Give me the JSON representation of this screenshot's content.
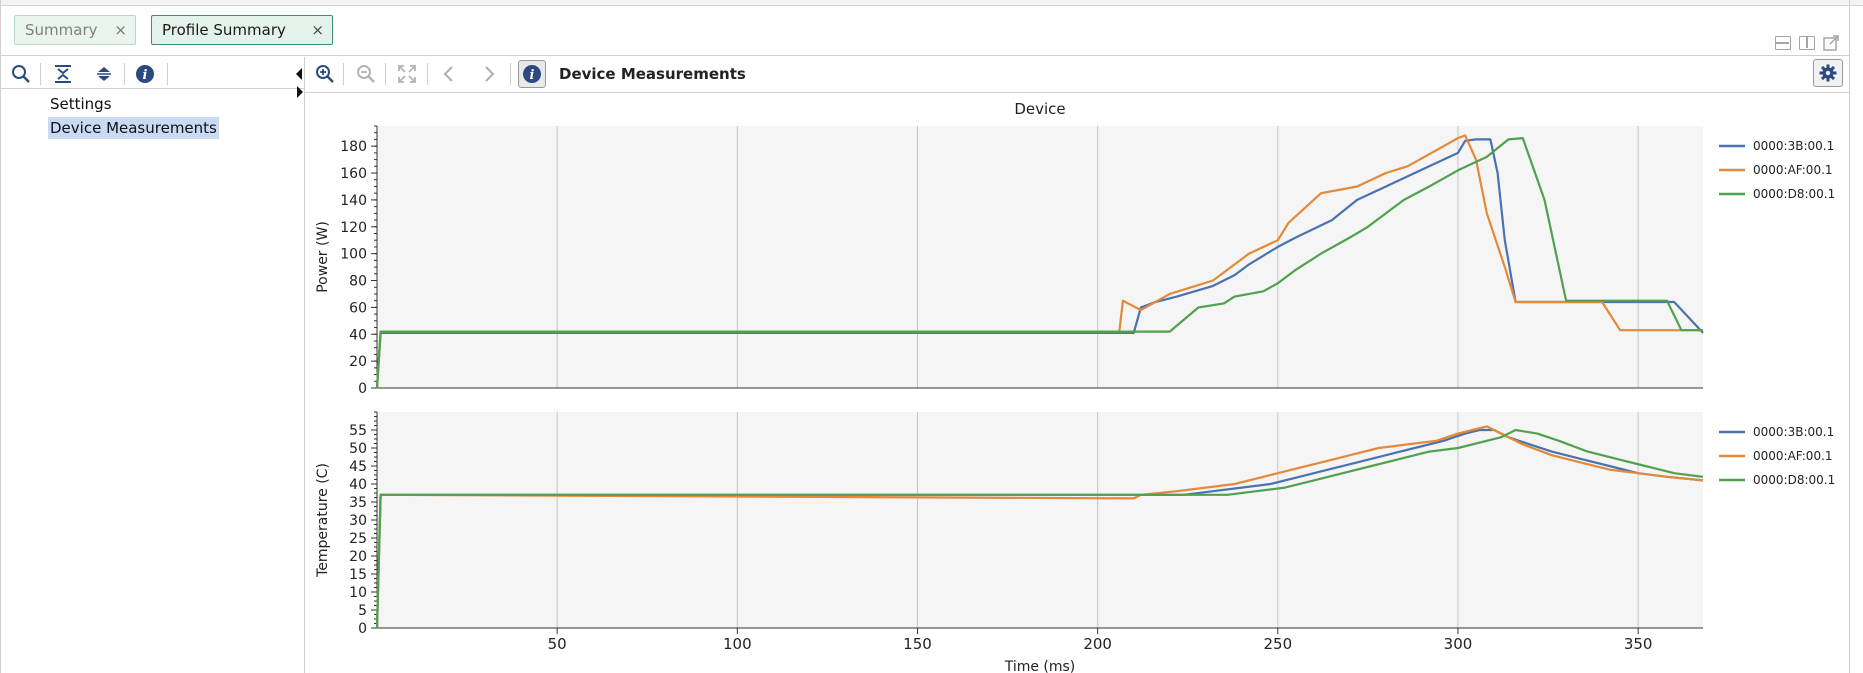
{
  "tabs": [
    {
      "label": "Summary",
      "close": "×",
      "active": false
    },
    {
      "label": "Profile Summary",
      "close": "×",
      "active": true
    }
  ],
  "tree": {
    "items": [
      {
        "label": "Settings",
        "selected": false
      },
      {
        "label": "Device Measurements",
        "selected": true
      }
    ]
  },
  "icons": {
    "left_toolbar": [
      "search-icon",
      "collapse-all-icon",
      "expand-all-icon",
      "info-icon"
    ],
    "right_toolbar": [
      "zoom-in-icon",
      "zoom-out-icon",
      "zoom-fit-icon",
      "back-icon",
      "forward-icon",
      "info-icon",
      "gear-icon"
    ]
  },
  "view": {
    "title": "Device Measurements"
  },
  "colors": {
    "accent_tab": "#3f8f6c",
    "selection": "#c9daf5",
    "icon_blue": "#2b4a80"
  },
  "chart_data": {
    "type": "line",
    "title": "Device",
    "xlabel": "Time (ms)",
    "xlim": [
      0,
      368
    ],
    "xticks": [
      50,
      100,
      150,
      200,
      250,
      300,
      350
    ],
    "grid": true,
    "legend_position": "right",
    "series_colors": [
      "#4a72b0",
      "#e4883a",
      "#4fa14f"
    ],
    "panels": [
      {
        "ylabel": "Power (W)",
        "ylim": [
          0,
          195
        ],
        "yticks": [
          0,
          20,
          40,
          60,
          80,
          100,
          120,
          140,
          160,
          180
        ],
        "series": [
          {
            "name": "0000:3B:00.1",
            "x": [
              0,
              1,
              210,
              212,
              216,
              222,
              232,
              238,
              242,
              250,
              255,
              265,
              272,
              280,
              288,
              300,
              302,
              305,
              309,
              311,
              313,
              316,
              360,
              368
            ],
            "y": [
              0,
              41,
              41,
              60,
              64,
              68,
              76,
              84,
              92,
              105,
              112,
              125,
              140,
              150,
              160,
              175,
              184,
              185,
              185,
              160,
              110,
              64,
              64,
              41
            ]
          },
          {
            "name": "0000:AF:00.1",
            "x": [
              0,
              1,
              206,
              207,
              212,
              220,
              232,
              238,
              242,
              250,
              253,
              262,
              272,
              280,
              286,
              296,
              300,
              302,
              305,
              308,
              313,
              316,
              340,
              345,
              368
            ],
            "y": [
              0,
              42,
              42,
              65,
              58,
              70,
              80,
              92,
              100,
              110,
              123,
              145,
              150,
              160,
              165,
              180,
              186,
              188,
              170,
              130,
              90,
              64,
              64,
              43,
              43
            ]
          },
          {
            "name": "0000:D8:00.1",
            "x": [
              0,
              1,
              220,
              228,
              235,
              238,
              246,
              250,
              255,
              262,
              270,
              275,
              285,
              292,
              296,
              300,
              308,
              314,
              318,
              324,
              328,
              330,
              358,
              362,
              368
            ],
            "y": [
              0,
              42,
              42,
              60,
              63,
              68,
              72,
              78,
              88,
              100,
              112,
              120,
              140,
              150,
              156,
              162,
              172,
              185,
              186,
              140,
              90,
              65,
              65,
              43,
              43
            ]
          }
        ]
      },
      {
        "ylabel": "Temperature (C)",
        "ylim": [
          0,
          60
        ],
        "yticks": [
          0,
          5,
          10,
          15,
          20,
          25,
          30,
          35,
          40,
          45,
          50,
          55
        ],
        "series": [
          {
            "name": "0000:3B:00.1",
            "x": [
              0,
              1,
              224,
              232,
              240,
              248,
              256,
              264,
              272,
              280,
              288,
              296,
              302,
              306,
              310,
              314,
              320,
              326,
              334,
              342,
              350,
              358,
              368
            ],
            "y": [
              0,
              37,
              37,
              38,
              39,
              40,
              42,
              44,
              46,
              48,
              50,
              52,
              54,
              55,
              55,
              53,
              51,
              49,
              47,
              45,
              43,
              42,
              41
            ]
          },
          {
            "name": "0000:AF:00.1",
            "x": [
              0,
              1,
              210,
              212,
              222,
              230,
              238,
              246,
              254,
              262,
              270,
              278,
              286,
              294,
              300,
              304,
              308,
              312,
              318,
              326,
              334,
              342,
              350,
              358,
              368
            ],
            "y": [
              0,
              37,
              36,
              37,
              38,
              39,
              40,
              42,
              44,
              46,
              48,
              50,
              51,
              52,
              54,
              55,
              56,
              54,
              51,
              48,
              46,
              44,
              43,
              42,
              41
            ]
          },
          {
            "name": "0000:D8:00.1",
            "x": [
              0,
              1,
              236,
              244,
              252,
              260,
              268,
              276,
              284,
              292,
              300,
              308,
              312,
              316,
              322,
              328,
              336,
              344,
              352,
              360,
              368
            ],
            "y": [
              0,
              37,
              37,
              38,
              39,
              41,
              43,
              45,
              47,
              49,
              50,
              52,
              53,
              55,
              54,
              52,
              49,
              47,
              45,
              43,
              42
            ]
          }
        ]
      }
    ]
  }
}
